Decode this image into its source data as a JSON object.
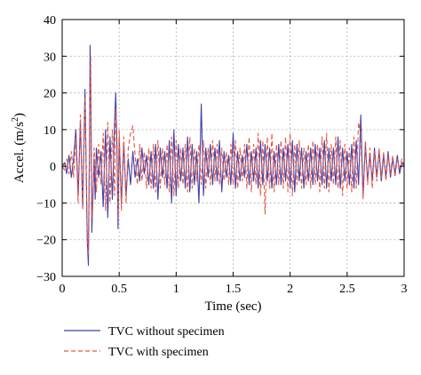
{
  "chart_data": {
    "type": "line",
    "xlabel": "Time (sec)",
    "ylabel": "Accel. (m/s²)",
    "ylabel_main": "Accel. (m/s",
    "ylabel_sup": "2",
    "ylabel_close": ")",
    "xlim": [
      0,
      3
    ],
    "ylim": [
      -30,
      40
    ],
    "x_ticks": [
      0,
      0.5,
      1,
      1.5,
      2,
      2.5,
      3
    ],
    "x_tick_labels": [
      "0",
      "0.5",
      "1",
      "1.5",
      "2",
      "2.5",
      "3"
    ],
    "y_ticks": [
      -30,
      -20,
      -10,
      0,
      10,
      20,
      30,
      40
    ],
    "y_tick_labels": [
      "−30",
      "−20",
      "−10",
      "0",
      "10",
      "20",
      "30",
      "40"
    ],
    "grid": true,
    "legend_position": "below",
    "series": [
      {
        "name": "TVC without specimen",
        "color": "#3f3fae",
        "style": "solid",
        "points": [
          [
            0,
            0
          ],
          [
            0.02,
            1
          ],
          [
            0.04,
            -2
          ],
          [
            0.06,
            3
          ],
          [
            0.08,
            -3
          ],
          [
            0.1,
            2
          ],
          [
            0.12,
            10
          ],
          [
            0.14,
            -8
          ],
          [
            0.16,
            12
          ],
          [
            0.18,
            -11
          ],
          [
            0.2,
            21
          ],
          [
            0.22,
            -20
          ],
          [
            0.23,
            -27
          ],
          [
            0.24,
            6
          ],
          [
            0.245,
            33
          ],
          [
            0.25,
            22
          ],
          [
            0.26,
            -18
          ],
          [
            0.27,
            -7
          ],
          [
            0.28,
            2
          ],
          [
            0.29,
            -9
          ],
          [
            0.3,
            5
          ],
          [
            0.32,
            -3
          ],
          [
            0.34,
            4
          ],
          [
            0.36,
            -11
          ],
          [
            0.38,
            10
          ],
          [
            0.4,
            -14
          ],
          [
            0.42,
            8
          ],
          [
            0.44,
            -9
          ],
          [
            0.46,
            12
          ],
          [
            0.47,
            20
          ],
          [
            0.48,
            6
          ],
          [
            0.49,
            -17
          ],
          [
            0.5,
            8
          ],
          [
            0.52,
            -10
          ],
          [
            0.54,
            6
          ],
          [
            0.56,
            -8
          ],
          [
            0.58,
            2
          ],
          [
            0.6,
            -5
          ],
          [
            0.62,
            4
          ],
          [
            0.64,
            -3
          ],
          [
            0.66,
            2
          ],
          [
            0.68,
            -4
          ],
          [
            0.7,
            5
          ],
          [
            0.72,
            -2
          ],
          [
            0.74,
            3
          ],
          [
            0.76,
            -5
          ],
          [
            0.78,
            4
          ],
          [
            0.8,
            -6
          ],
          [
            0.82,
            6
          ],
          [
            0.84,
            -9
          ],
          [
            0.86,
            5
          ],
          [
            0.88,
            -3
          ],
          [
            0.9,
            4
          ],
          [
            0.92,
            -6
          ],
          [
            0.94,
            7
          ],
          [
            0.96,
            -10
          ],
          [
            0.98,
            10
          ],
          [
            1.0,
            -8
          ],
          [
            1.02,
            6
          ],
          [
            1.04,
            -4
          ],
          [
            1.06,
            5
          ],
          [
            1.08,
            -6
          ],
          [
            1.1,
            8
          ],
          [
            1.12,
            -7
          ],
          [
            1.14,
            6
          ],
          [
            1.16,
            -5
          ],
          [
            1.18,
            4
          ],
          [
            1.2,
            -10
          ],
          [
            1.22,
            17
          ],
          [
            1.24,
            -8
          ],
          [
            1.26,
            5
          ],
          [
            1.28,
            -3
          ],
          [
            1.3,
            6
          ],
          [
            1.32,
            -5
          ],
          [
            1.34,
            5
          ],
          [
            1.36,
            -4
          ],
          [
            1.38,
            7
          ],
          [
            1.4,
            -7
          ],
          [
            1.42,
            4
          ],
          [
            1.44,
            -3
          ],
          [
            1.46,
            3
          ],
          [
            1.48,
            -5
          ],
          [
            1.5,
            9
          ],
          [
            1.52,
            -6
          ],
          [
            1.54,
            4
          ],
          [
            1.56,
            -4
          ],
          [
            1.58,
            3
          ],
          [
            1.6,
            -3
          ],
          [
            1.62,
            6
          ],
          [
            1.64,
            -5
          ],
          [
            1.66,
            4
          ],
          [
            1.68,
            -4
          ],
          [
            1.7,
            5
          ],
          [
            1.72,
            -6
          ],
          [
            1.74,
            7
          ],
          [
            1.76,
            -5
          ],
          [
            1.78,
            6
          ],
          [
            1.8,
            -4
          ],
          [
            1.82,
            5
          ],
          [
            1.84,
            -6
          ],
          [
            1.86,
            4
          ],
          [
            1.88,
            -5
          ],
          [
            1.9,
            6
          ],
          [
            1.92,
            -5
          ],
          [
            1.94,
            5
          ],
          [
            1.96,
            -4
          ],
          [
            1.98,
            6
          ],
          [
            2.0,
            -6
          ],
          [
            2.02,
            7
          ],
          [
            2.04,
            -7
          ],
          [
            2.06,
            6
          ],
          [
            2.08,
            -4
          ],
          [
            2.1,
            5
          ],
          [
            2.12,
            -6
          ],
          [
            2.14,
            4
          ],
          [
            2.16,
            -4
          ],
          [
            2.18,
            5
          ],
          [
            2.2,
            -5
          ],
          [
            2.22,
            6
          ],
          [
            2.24,
            -4
          ],
          [
            2.26,
            5
          ],
          [
            2.28,
            -5
          ],
          [
            2.3,
            7
          ],
          [
            2.32,
            -6
          ],
          [
            2.34,
            5
          ],
          [
            2.36,
            -4
          ],
          [
            2.38,
            5
          ],
          [
            2.4,
            -5
          ],
          [
            2.42,
            8
          ],
          [
            2.44,
            -6
          ],
          [
            2.46,
            5
          ],
          [
            2.48,
            -4
          ],
          [
            2.5,
            4
          ],
          [
            2.52,
            -5
          ],
          [
            2.54,
            6
          ],
          [
            2.56,
            -6
          ],
          [
            2.58,
            7
          ],
          [
            2.6,
            -5
          ],
          [
            2.62,
            14
          ],
          [
            2.64,
            -8
          ],
          [
            2.66,
            6
          ],
          [
            2.68,
            -4
          ],
          [
            2.7,
            3
          ],
          [
            2.72,
            -4
          ],
          [
            2.74,
            5
          ],
          [
            2.76,
            -3
          ],
          [
            2.78,
            4
          ],
          [
            2.8,
            -4
          ],
          [
            2.82,
            3
          ],
          [
            2.84,
            -3
          ],
          [
            2.86,
            4
          ],
          [
            2.88,
            -3
          ],
          [
            2.9,
            2
          ],
          [
            2.92,
            -2
          ],
          [
            2.94,
            3
          ],
          [
            2.96,
            -2
          ],
          [
            2.98,
            1
          ],
          [
            3.0,
            0
          ]
        ]
      },
      {
        "name": "TVC with specimen",
        "color": "#e8563e",
        "style": "dashed",
        "points": [
          [
            0,
            0
          ],
          [
            0.02,
            -1
          ],
          [
            0.04,
            2
          ],
          [
            0.06,
            -2
          ],
          [
            0.08,
            4
          ],
          [
            0.1,
            -3
          ],
          [
            0.12,
            8
          ],
          [
            0.14,
            -10
          ],
          [
            0.16,
            14
          ],
          [
            0.18,
            -12
          ],
          [
            0.2,
            19
          ],
          [
            0.22,
            -18
          ],
          [
            0.23,
            -24
          ],
          [
            0.24,
            10
          ],
          [
            0.25,
            30
          ],
          [
            0.26,
            -14
          ],
          [
            0.27,
            -9
          ],
          [
            0.28,
            5
          ],
          [
            0.3,
            -7
          ],
          [
            0.32,
            6
          ],
          [
            0.34,
            -5
          ],
          [
            0.36,
            9
          ],
          [
            0.38,
            -12
          ],
          [
            0.4,
            12
          ],
          [
            0.42,
            -10
          ],
          [
            0.44,
            10
          ],
          [
            0.46,
            -8
          ],
          [
            0.47,
            16
          ],
          [
            0.48,
            9
          ],
          [
            0.49,
            -14
          ],
          [
            0.5,
            10
          ],
          [
            0.52,
            -12
          ],
          [
            0.54,
            8
          ],
          [
            0.56,
            -10
          ],
          [
            0.58,
            5
          ],
          [
            0.6,
            9
          ],
          [
            0.62,
            11
          ],
          [
            0.64,
            3
          ],
          [
            0.66,
            -5
          ],
          [
            0.68,
            6
          ],
          [
            0.7,
            -4
          ],
          [
            0.72,
            4
          ],
          [
            0.74,
            -6
          ],
          [
            0.76,
            5
          ],
          [
            0.78,
            -6
          ],
          [
            0.8,
            6
          ],
          [
            0.82,
            -7
          ],
          [
            0.84,
            7
          ],
          [
            0.86,
            -6
          ],
          [
            0.88,
            5
          ],
          [
            0.9,
            -5
          ],
          [
            0.92,
            6
          ],
          [
            0.94,
            -7
          ],
          [
            0.96,
            8
          ],
          [
            0.98,
            -8
          ],
          [
            1.0,
            7
          ],
          [
            1.02,
            -6
          ],
          [
            1.04,
            5
          ],
          [
            1.06,
            -5
          ],
          [
            1.08,
            6
          ],
          [
            1.1,
            -7
          ],
          [
            1.12,
            8
          ],
          [
            1.14,
            -6
          ],
          [
            1.16,
            5
          ],
          [
            1.18,
            -4
          ],
          [
            1.2,
            6
          ],
          [
            1.22,
            -5
          ],
          [
            1.24,
            7
          ],
          [
            1.26,
            -6
          ],
          [
            1.28,
            5
          ],
          [
            1.3,
            -5
          ],
          [
            1.32,
            7
          ],
          [
            1.34,
            -4
          ],
          [
            1.36,
            6
          ],
          [
            1.38,
            -5
          ],
          [
            1.4,
            5
          ],
          [
            1.42,
            -4
          ],
          [
            1.44,
            4
          ],
          [
            1.46,
            -5
          ],
          [
            1.48,
            6
          ],
          [
            1.5,
            -5
          ],
          [
            1.52,
            7
          ],
          [
            1.54,
            -6
          ],
          [
            1.56,
            5
          ],
          [
            1.58,
            -4
          ],
          [
            1.6,
            6
          ],
          [
            1.62,
            -6
          ],
          [
            1.64,
            8
          ],
          [
            1.66,
            -7
          ],
          [
            1.68,
            6
          ],
          [
            1.7,
            -5
          ],
          [
            1.72,
            9
          ],
          [
            1.74,
            -8
          ],
          [
            1.76,
            7
          ],
          [
            1.78,
            -13
          ],
          [
            1.8,
            8
          ],
          [
            1.82,
            -6
          ],
          [
            1.84,
            9
          ],
          [
            1.86,
            -7
          ],
          [
            1.88,
            6
          ],
          [
            1.9,
            -5
          ],
          [
            1.92,
            7
          ],
          [
            1.94,
            -6
          ],
          [
            1.96,
            8
          ],
          [
            1.98,
            -7
          ],
          [
            2.0,
            9
          ],
          [
            2.02,
            -8
          ],
          [
            2.04,
            6
          ],
          [
            2.06,
            -5
          ],
          [
            2.08,
            7
          ],
          [
            2.1,
            -6
          ],
          [
            2.12,
            5
          ],
          [
            2.14,
            -5
          ],
          [
            2.16,
            6
          ],
          [
            2.18,
            -6
          ],
          [
            2.2,
            7
          ],
          [
            2.22,
            -5
          ],
          [
            2.24,
            6
          ],
          [
            2.26,
            -7
          ],
          [
            2.28,
            8
          ],
          [
            2.3,
            -6
          ],
          [
            2.32,
            9
          ],
          [
            2.34,
            -7
          ],
          [
            2.36,
            6
          ],
          [
            2.38,
            -5
          ],
          [
            2.4,
            8
          ],
          [
            2.42,
            -6
          ],
          [
            2.44,
            7
          ],
          [
            2.46,
            -8
          ],
          [
            2.48,
            6
          ],
          [
            2.5,
            -6
          ],
          [
            2.52,
            5
          ],
          [
            2.54,
            -7
          ],
          [
            2.56,
            8
          ],
          [
            2.58,
            -6
          ],
          [
            2.6,
            12
          ],
          [
            2.62,
            8
          ],
          [
            2.64,
            -9
          ],
          [
            2.66,
            7
          ],
          [
            2.68,
            -5
          ],
          [
            2.7,
            5
          ],
          [
            2.72,
            -6
          ],
          [
            2.74,
            4
          ],
          [
            2.76,
            -4
          ],
          [
            2.78,
            5
          ],
          [
            2.8,
            -3
          ],
          [
            2.82,
            4
          ],
          [
            2.84,
            -4
          ],
          [
            2.86,
            3
          ],
          [
            2.88,
            -2
          ],
          [
            2.9,
            3
          ],
          [
            2.92,
            -3
          ],
          [
            2.94,
            2
          ],
          [
            2.96,
            -1
          ],
          [
            2.98,
            2
          ],
          [
            3.0,
            0
          ]
        ]
      }
    ]
  }
}
